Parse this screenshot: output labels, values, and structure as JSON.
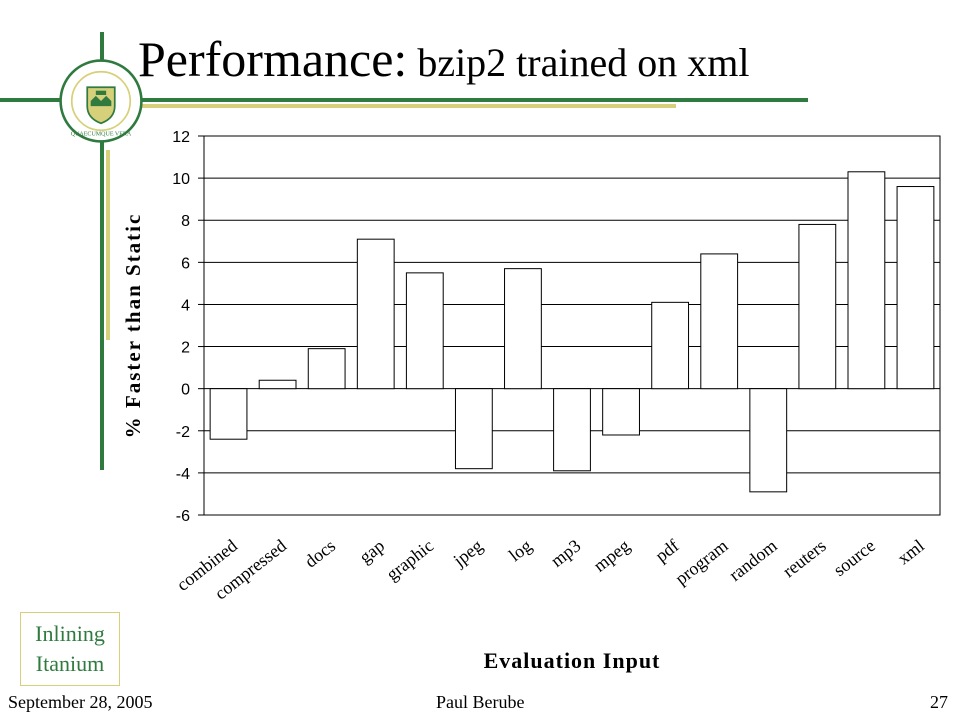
{
  "slide": {
    "title_main": "Performance:",
    "title_sub": " bzip2 trained on xml",
    "tag_line1": "Inlining",
    "tag_line2": "Itanium",
    "footer_date": "September 28, 2005",
    "footer_author": "Paul Berube",
    "footer_page": "27",
    "logo_text": "UNIVERSITY OF ALBERTA",
    "logo_motto": "QUAECUMQUE VERA",
    "colors": {
      "green": "#2f7a3f",
      "gold": "#d6d07a",
      "bar_fill": "#ffffff",
      "bar_stroke": "#000000"
    }
  },
  "chart_data": {
    "type": "bar",
    "title": "",
    "xlabel": "Evaluation Input",
    "ylabel": "% Faster than Static",
    "ylim": [
      -6,
      12
    ],
    "yticks": [
      12,
      10,
      8,
      6,
      4,
      2,
      0,
      -2,
      -4,
      -6
    ],
    "grid": true,
    "categories": [
      "combined",
      "compressed",
      "docs",
      "gap",
      "graphic",
      "jpeg",
      "log",
      "mp3",
      "mpeg",
      "pdf",
      "program",
      "random",
      "reuters",
      "source",
      "xml"
    ],
    "values": [
      -2.4,
      0.4,
      1.9,
      7.1,
      5.5,
      -3.8,
      5.7,
      -3.9,
      -2.2,
      4.1,
      6.4,
      -4.9,
      7.8,
      10.3,
      9.6
    ]
  }
}
